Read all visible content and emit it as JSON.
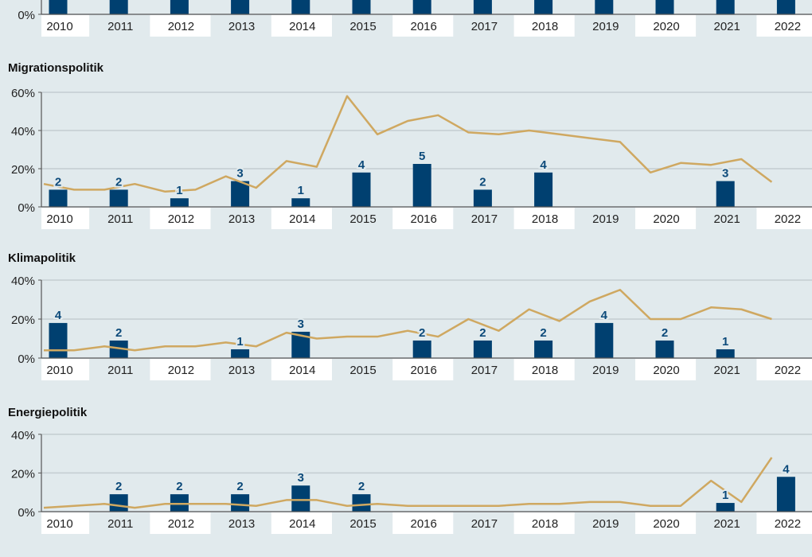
{
  "chart_data": [
    {
      "type": "bar+line",
      "title": "",
      "partial": true,
      "categories": [
        "2010",
        "2011",
        "2012",
        "2013",
        "2014",
        "2015",
        "2016",
        "2017",
        "2018",
        "2019",
        "2020",
        "2021",
        "2022"
      ],
      "yticks": [
        "0%"
      ],
      "bar_counts": [
        null,
        null,
        null,
        null,
        null,
        null,
        null,
        null,
        null,
        null,
        null,
        null,
        null
      ],
      "bar_percent": [
        null,
        null,
        null,
        null,
        null,
        null,
        null,
        null,
        null,
        null,
        null,
        null,
        null
      ],
      "line_percent": []
    },
    {
      "type": "bar+line",
      "title": "Migrationspolitik",
      "categories": [
        "2010",
        "2011",
        "2012",
        "2013",
        "2014",
        "2015",
        "2016",
        "2017",
        "2018",
        "2019",
        "2020",
        "2021",
        "2022"
      ],
      "ylim": [
        0,
        60
      ],
      "yticks": [
        "0%",
        "20%",
        "40%",
        "60%"
      ],
      "bar_counts": [
        2,
        2,
        1,
        3,
        1,
        4,
        5,
        2,
        4,
        null,
        null,
        3,
        null
      ],
      "bar_percent": [
        9,
        9,
        4.5,
        13.5,
        4.5,
        18,
        22.5,
        9,
        18,
        null,
        null,
        13.5,
        null
      ],
      "line_percent": [
        12,
        9,
        9,
        12,
        8,
        9,
        16,
        10,
        24,
        21,
        58,
        38,
        45,
        48,
        39,
        38,
        40,
        38,
        36,
        34,
        18,
        23,
        22,
        25,
        13
      ]
    },
    {
      "type": "bar+line",
      "title": "Klimapolitik",
      "categories": [
        "2010",
        "2011",
        "2012",
        "2013",
        "2014",
        "2015",
        "2016",
        "2017",
        "2018",
        "2019",
        "2020",
        "2021",
        "2022"
      ],
      "ylim": [
        0,
        40
      ],
      "yticks": [
        "0%",
        "20%",
        "40%"
      ],
      "bar_counts": [
        4,
        2,
        null,
        1,
        3,
        null,
        2,
        2,
        2,
        4,
        2,
        1,
        null
      ],
      "bar_percent": [
        18,
        9,
        null,
        4.5,
        13.5,
        null,
        9,
        9,
        9,
        18,
        9,
        4.5,
        null
      ],
      "line_percent": [
        4,
        4,
        6,
        4,
        6,
        6,
        8,
        6,
        13,
        10,
        11,
        11,
        14,
        11,
        20,
        14,
        25,
        19,
        29,
        35,
        20,
        20,
        26,
        25,
        20
      ]
    },
    {
      "type": "bar+line",
      "title": "Energiepolitik",
      "categories": [
        "2010",
        "2011",
        "2012",
        "2013",
        "2014",
        "2015",
        "2016",
        "2017",
        "2018",
        "2019",
        "2020",
        "2021",
        "2022"
      ],
      "ylim": [
        0,
        40
      ],
      "yticks": [
        "0%",
        "20%",
        "40%"
      ],
      "bar_counts": [
        null,
        2,
        2,
        2,
        3,
        2,
        null,
        null,
        null,
        null,
        null,
        1,
        4
      ],
      "bar_percent": [
        null,
        9,
        9,
        9,
        13.5,
        9,
        null,
        null,
        null,
        null,
        null,
        4.5,
        18
      ],
      "line_percent": [
        2,
        3,
        4,
        2,
        4,
        4,
        4,
        3,
        6,
        6,
        3,
        4,
        3,
        3,
        3,
        3,
        4,
        4,
        5,
        5,
        3,
        3,
        16,
        5,
        28
      ]
    }
  ],
  "colors": {
    "bar": "#004070",
    "line": "#cfa861",
    "grid": "#c4cdd1",
    "band": "#ffffff",
    "background": "#e1eaed"
  }
}
